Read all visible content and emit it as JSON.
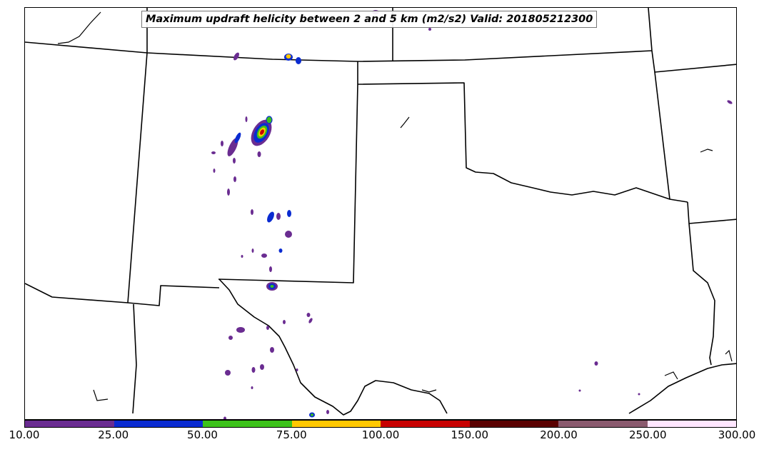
{
  "title": "Maximum updraft helicity between 2 and 5 km (m2/s2) Valid: 201805212300",
  "colorbar": {
    "colors": [
      "#6a2c91",
      "#0a2bd1",
      "#3cc21a",
      "#ffc800",
      "#c80000",
      "#5a0000",
      "#8a5a6e",
      "#ffe6ff"
    ],
    "labels": [
      "10.00",
      "25.00",
      "50.00",
      "75.00",
      "100.00",
      "150.00",
      "200.00",
      "250.00",
      "300.00"
    ]
  },
  "legend_levels": [
    10,
    25,
    50,
    75,
    100,
    150,
    200,
    250,
    300
  ],
  "map_region": "Southern Plains (New Mexico, Texas, Oklahoma)"
}
